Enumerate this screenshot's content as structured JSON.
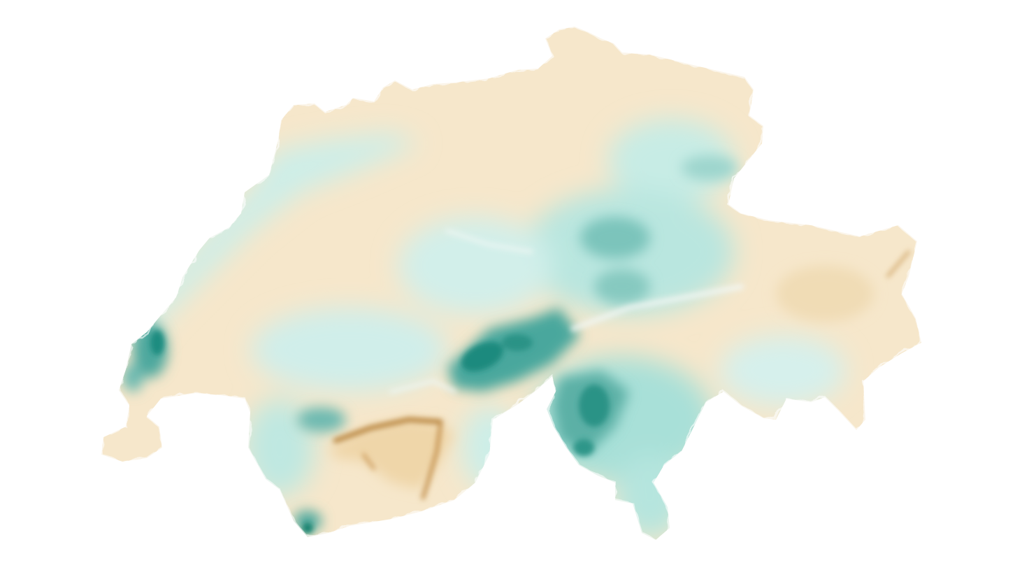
{
  "map": {
    "region": "Switzerland",
    "style": "choropleth-raster",
    "palette": {
      "dry": "#a0702a",
      "light_dry": "#f5e6c8",
      "neutral": "#f4f7f6",
      "light_wet": "#c4ece6",
      "wet": "#0f7e72"
    },
    "legend": null,
    "title": ""
  }
}
